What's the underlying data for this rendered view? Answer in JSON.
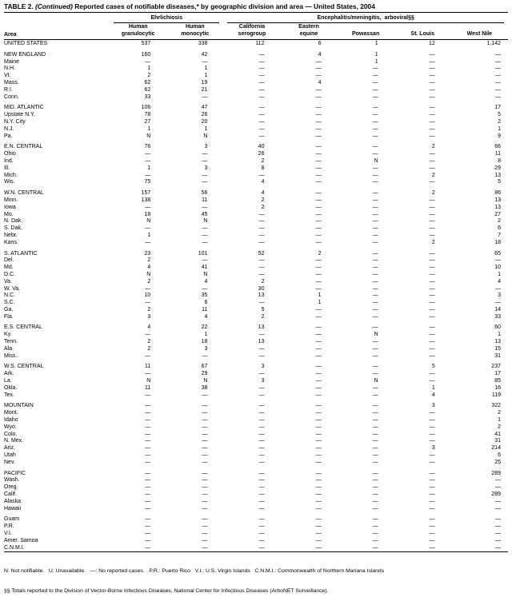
{
  "title": {
    "label": "TABLE 2.",
    "continued": "(Continued)",
    "text": "Reported cases of notifiable diseases,* by geographic division and area — United States, 2004"
  },
  "header": {
    "area": "Area",
    "group_labels": [
      "Ehrlichiosis",
      "Encephalitis/meningitis,  arboviral§§"
    ],
    "columns": [
      "Human\ngranulocytic",
      "Human\nmonocytic",
      "California\nserogroup",
      "Eastern\nequine",
      "Powassan",
      "St. Louis",
      "West Nile"
    ]
  },
  "groups": [
    [
      [
        "UNITED STATES",
        "537",
        "338",
        "112",
        "6",
        "1",
        "12",
        "1,142"
      ]
    ],
    [
      [
        "NEW ENGLAND",
        "160",
        "42",
        "—",
        "4",
        "1",
        "—",
        "—"
      ],
      [
        "Maine",
        "—",
        "—",
        "—",
        "—",
        "1",
        "—",
        "—"
      ],
      [
        "N.H.",
        "1",
        "1",
        "—",
        "—",
        "—",
        "—",
        "—"
      ],
      [
        "Vt.",
        "2",
        "1",
        "—",
        "—",
        "—",
        "—",
        "—"
      ],
      [
        "Mass.",
        "62",
        "19",
        "—",
        "4",
        "—",
        "—",
        "—"
      ],
      [
        "R.I.",
        "62",
        "21",
        "—",
        "—",
        "—",
        "—",
        "—"
      ],
      [
        "Conn.",
        "33",
        "—",
        "—",
        "—",
        "—",
        "—",
        "—"
      ]
    ],
    [
      [
        "MID. ATLANTIC",
        "106",
        "47",
        "—",
        "—",
        "—",
        "—",
        "17"
      ],
      [
        "Upstate N.Y.",
        "78",
        "26",
        "—",
        "—",
        "—",
        "—",
        "5"
      ],
      [
        "N.Y. City",
        "27",
        "20",
        "—",
        "—",
        "—",
        "—",
        "2"
      ],
      [
        "N.J.",
        "1",
        "1",
        "—",
        "—",
        "—",
        "—",
        "1"
      ],
      [
        "Pa.",
        "N",
        "N",
        "—",
        "—",
        "—",
        "—",
        "9"
      ]
    ],
    [
      [
        "E.N. CENTRAL",
        "76",
        "3",
        "40",
        "—",
        "—",
        "2",
        "66"
      ],
      [
        "Ohio",
        "—",
        "—",
        "26",
        "—",
        "—",
        "—",
        "11"
      ],
      [
        "Ind.",
        "—",
        "—",
        "2",
        "—",
        "N",
        "—",
        "8"
      ],
      [
        "Ill.",
        "1",
        "3",
        "8",
        "—",
        "—",
        "—",
        "29"
      ],
      [
        "Mich.",
        "—",
        "—",
        "—",
        "—",
        "—",
        "2",
        "13"
      ],
      [
        "Wis.",
        "75",
        "—",
        "4",
        "—",
        "—",
        "—",
        "5"
      ]
    ],
    [
      [
        "W.N. CENTRAL",
        "157",
        "56",
        "4",
        "—",
        "—",
        "2",
        "86"
      ],
      [
        "Minn.",
        "138",
        "11",
        "2",
        "—",
        "—",
        "—",
        "13"
      ],
      [
        "Iowa",
        "—",
        "—",
        "2",
        "—",
        "—",
        "—",
        "13"
      ],
      [
        "Mo.",
        "18",
        "45",
        "—",
        "—",
        "—",
        "—",
        "27"
      ],
      [
        "N. Dak.",
        "N",
        "N",
        "—",
        "—",
        "—",
        "—",
        "2"
      ],
      [
        "S. Dak.",
        "—",
        "—",
        "—",
        "—",
        "—",
        "—",
        "6"
      ],
      [
        "Nebr.",
        "1",
        "—",
        "—",
        "—",
        "—",
        "—",
        "7"
      ],
      [
        "Kans.",
        "—",
        "—",
        "—",
        "—",
        "—",
        "2",
        "18"
      ]
    ],
    [
      [
        "S. ATLANTIC",
        "23",
        "101",
        "52",
        "2",
        "—",
        "—",
        "65"
      ],
      [
        "Del.",
        "2",
        "—",
        "—",
        "—",
        "—",
        "—",
        "—"
      ],
      [
        "Md.",
        "4",
        "41",
        "—",
        "—",
        "—",
        "—",
        "10"
      ],
      [
        "D.C.",
        "N",
        "N",
        "—",
        "—",
        "—",
        "—",
        "1"
      ],
      [
        "Va.",
        "2",
        "4",
        "2",
        "—",
        "—",
        "—",
        "4"
      ],
      [
        "W. Va.",
        "—",
        "—",
        "30",
        "—",
        "—",
        "—",
        "—"
      ],
      [
        "N.C.",
        "10",
        "35",
        "13",
        "1",
        "—",
        "—",
        "3"
      ],
      [
        "S.C.",
        "—",
        "6",
        "—",
        "1",
        "—",
        "—",
        "—"
      ],
      [
        "Ga.",
        "2",
        "11",
        "5",
        "—",
        "—",
        "—",
        "14"
      ],
      [
        "Fla.",
        "3",
        "4",
        "2",
        "—",
        "—",
        "—",
        "33"
      ]
    ],
    [
      [
        "E.S. CENTRAL",
        "4",
        "22",
        "13",
        "—",
        "—",
        "—",
        "60"
      ],
      [
        "Ky.",
        "—",
        "1",
        "—",
        "—",
        "N",
        "—",
        "1"
      ],
      [
        "Tenn.",
        "2",
        "18",
        "13",
        "—",
        "—",
        "—",
        "13"
      ],
      [
        "Ala.",
        "2",
        "3",
        "—",
        "—",
        "—",
        "—",
        "15"
      ],
      [
        "Miss.",
        "—",
        "—",
        "—",
        "—",
        "—",
        "—",
        "31"
      ]
    ],
    [
      [
        "W.S. CENTRAL",
        "11",
        "67",
        "3",
        "—",
        "—",
        "5",
        "237"
      ],
      [
        "Ark.",
        "—",
        "29",
        "—",
        "—",
        "—",
        "—",
        "17"
      ],
      [
        "La.",
        "N",
        "N",
        "3",
        "—",
        "N",
        "—",
        "85"
      ],
      [
        "Okla.",
        "11",
        "38",
        "—",
        "—",
        "—",
        "1",
        "16"
      ],
      [
        "Tex.",
        "—",
        "—",
        "—",
        "—",
        "—",
        "4",
        "119"
      ]
    ],
    [
      [
        "MOUNTAIN",
        "—",
        "—",
        "—",
        "—",
        "—",
        "3",
        "322"
      ],
      [
        "Mont.",
        "—",
        "—",
        "—",
        "—",
        "—",
        "—",
        "2"
      ],
      [
        "Idaho",
        "—",
        "—",
        "—",
        "—",
        "—",
        "—",
        "1"
      ],
      [
        "Wyo.",
        "—",
        "—",
        "—",
        "—",
        "—",
        "—",
        "2"
      ],
      [
        "Colo.",
        "—",
        "—",
        "—",
        "—",
        "—",
        "—",
        "41"
      ],
      [
        "N. Mex.",
        "—",
        "—",
        "—",
        "—",
        "—",
        "—",
        "31"
      ],
      [
        "Ariz.",
        "—",
        "—",
        "—",
        "—",
        "—",
        "3",
        "214"
      ],
      [
        "Utah",
        "—",
        "—",
        "—",
        "—",
        "—",
        "—",
        "6"
      ],
      [
        "Nev.",
        "—",
        "—",
        "—",
        "—",
        "—",
        "—",
        "25"
      ]
    ],
    [
      [
        "PACIFIC",
        "—",
        "—",
        "—",
        "—",
        "—",
        "—",
        "289"
      ],
      [
        "Wash.",
        "—",
        "—",
        "—",
        "—",
        "—",
        "—",
        "—"
      ],
      [
        "Oreg.",
        "—",
        "—",
        "—",
        "—",
        "—",
        "—",
        "—"
      ],
      [
        "Calif.",
        "—",
        "—",
        "—",
        "—",
        "—",
        "—",
        "289"
      ],
      [
        "Alaska",
        "—",
        "—",
        "—",
        "—",
        "—",
        "—",
        "—"
      ],
      [
        "Hawaii",
        "—",
        "—",
        "—",
        "—",
        "—",
        "—",
        "—"
      ]
    ],
    [
      [
        "Guam",
        "—",
        "—",
        "—",
        "—",
        "—",
        "—",
        "—"
      ],
      [
        "P.R.",
        "—",
        "—",
        "—",
        "—",
        "—",
        "—",
        "—"
      ],
      [
        "V.I.",
        "—",
        "—",
        "—",
        "—",
        "—",
        "—",
        "—"
      ],
      [
        "Amer. Samoa",
        "—",
        "—",
        "—",
        "—",
        "—",
        "—",
        "—"
      ],
      [
        "C.N.M.I.",
        "—",
        "—",
        "—",
        "—",
        "—",
        "—",
        "—"
      ]
    ]
  ],
  "footnotes": [
    "N: Not notifiable.   U: Unavailable.   —: No reported cases.   P.R.: Puerto Rico   V.I.: U.S. Virgin Islands   C.N.M.I.: Commonwealth of Northern Mariana Islands",
    "§§ Totals reported to the Division of Vector-Borne Infectious Diseases, National Center for Infectious Diseases (ArboNET Surveillance)."
  ]
}
